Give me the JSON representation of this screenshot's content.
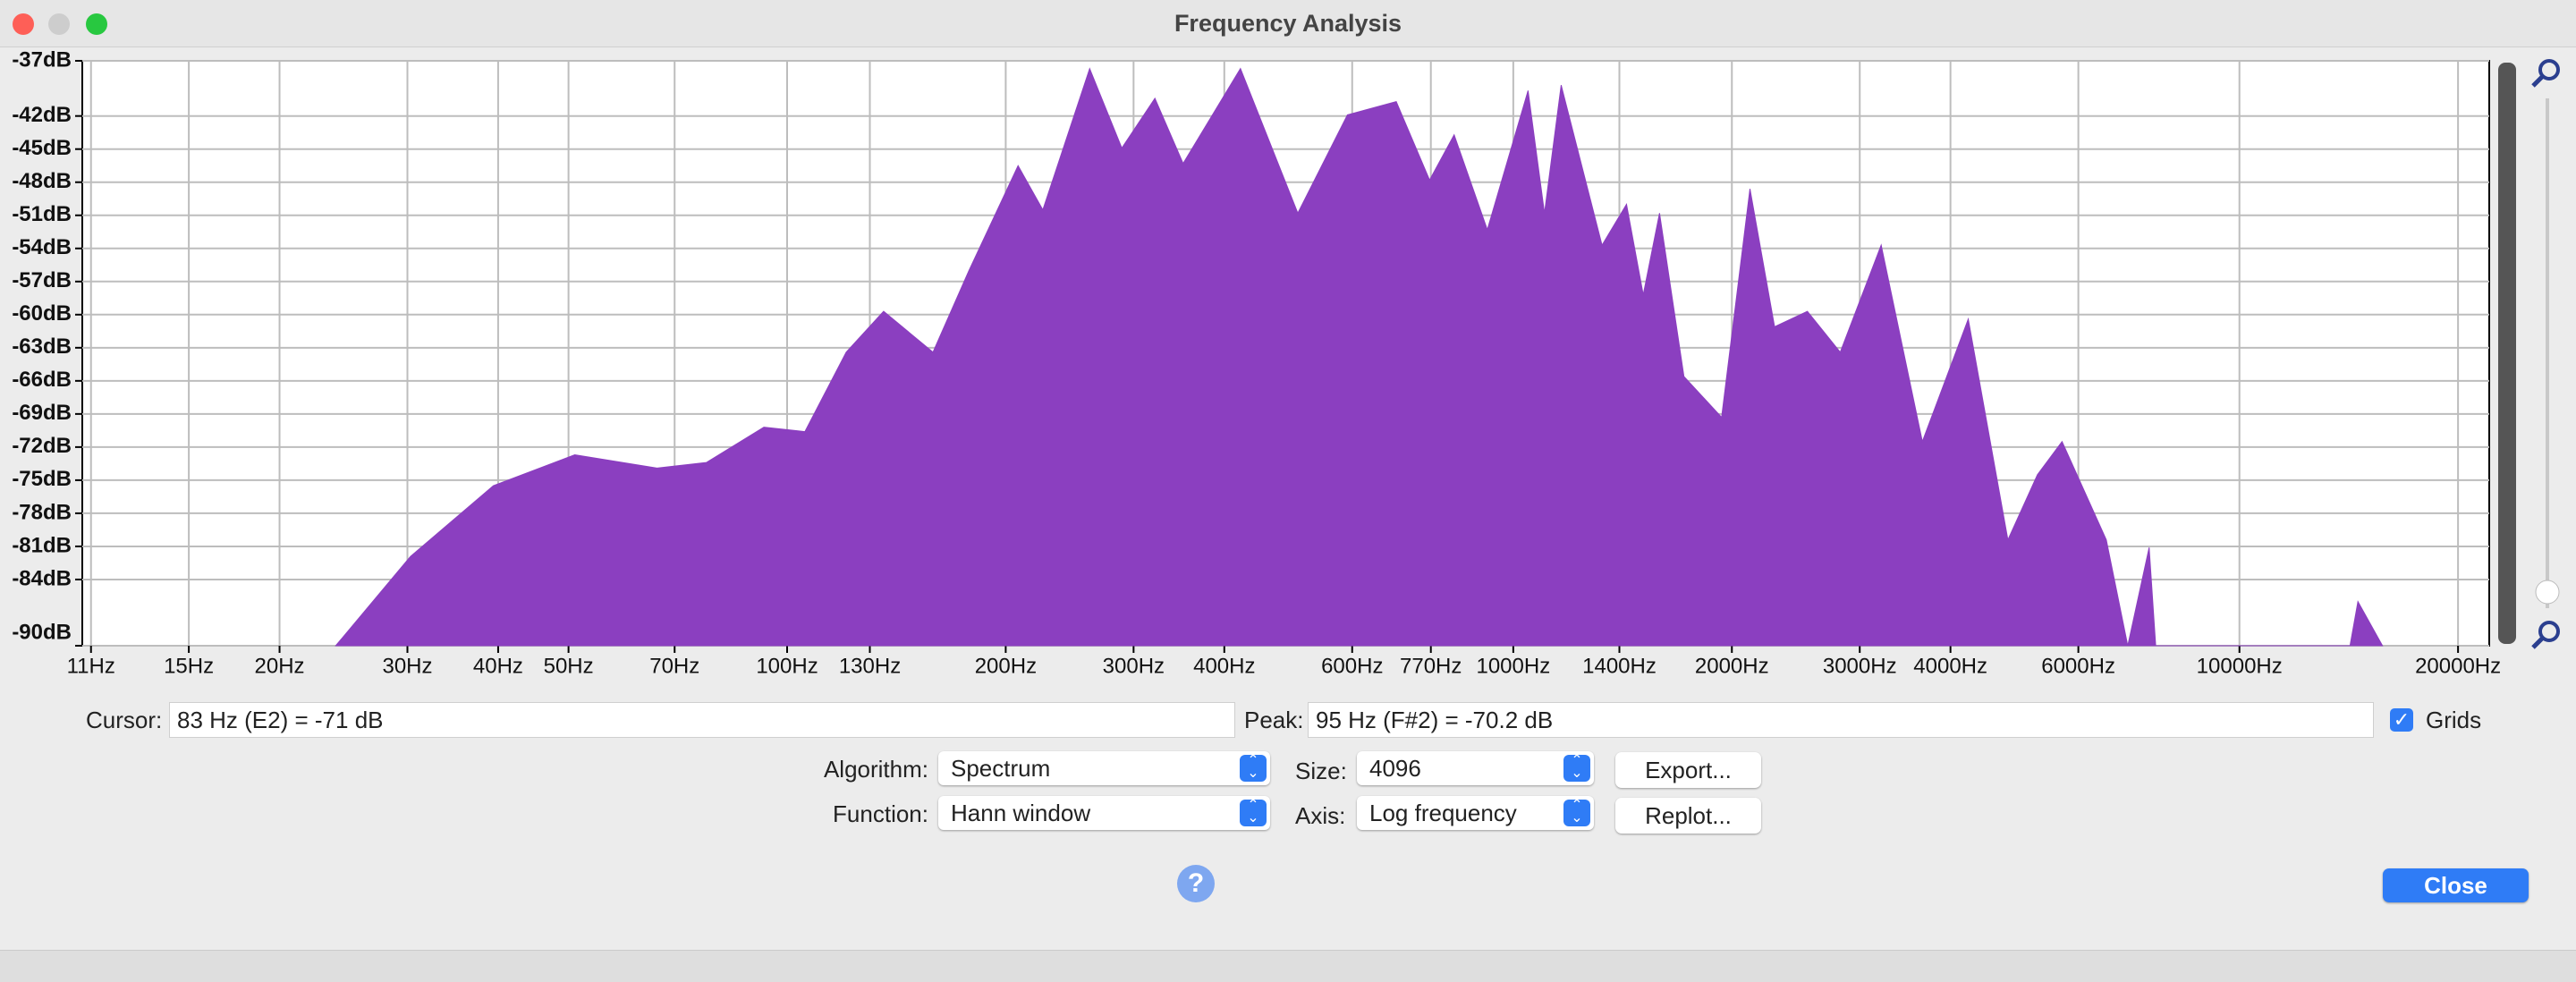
{
  "window_title": "Frequency Analysis",
  "chart_data": {
    "type": "area",
    "xscale": "log",
    "grid": true,
    "color": "#8b3fc0",
    "x": [
      23.9,
      30.3,
      39.4,
      51,
      66.2,
      77.4,
      92.9,
      105.8,
      120.6,
      135.8,
      158.8,
      178,
      208,
      225,
      261,
      289,
      321,
      351,
      421,
      505,
      591,
      690,
      767,
      829,
      921,
      1048,
      1104,
      1164,
      1325,
      1432,
      1510,
      1590,
      1718,
      1936,
      2118,
      2290,
      2541,
      2820,
      3211,
      3659,
      4232,
      4799,
      5270,
      5698,
      6556,
      7018,
      7510,
      7668,
      14200,
      14560,
      15740
    ],
    "values": [
      -90,
      -81.9,
      -75.5,
      -72.7,
      -73.9,
      -73.4,
      -70.2,
      -70.6,
      -63.4,
      -59.7,
      -63.4,
      -56,
      -46.5,
      -50.5,
      -37.7,
      -44.9,
      -40.4,
      -46.3,
      -37.7,
      -50.8,
      -41.9,
      -40.7,
      -47.8,
      -43.7,
      -52.3,
      -39.7,
      -50.8,
      -39.2,
      -53.7,
      -50,
      -58.2,
      -50.8,
      -65.6,
      -69.3,
      -48.6,
      -61.1,
      -59.7,
      -63.4,
      -53.7,
      -71.5,
      -60.4,
      -80.4,
      -74.5,
      -71.5,
      -80.4,
      -90,
      -81.1,
      -90,
      -90,
      -86,
      -90
    ],
    "xlim": [
      10.7,
      22080
    ],
    "ylim": [
      -90,
      -37
    ],
    "xticks": [
      {
        "value": 11,
        "label": "11Hz"
      },
      {
        "value": 15,
        "label": "15Hz"
      },
      {
        "value": 20,
        "label": "20Hz"
      },
      {
        "value": 30,
        "label": "30Hz"
      },
      {
        "value": 40,
        "label": "40Hz"
      },
      {
        "value": 50,
        "label": "50Hz"
      },
      {
        "value": 70,
        "label": "70Hz"
      },
      {
        "value": 100,
        "label": "100Hz"
      },
      {
        "value": 130,
        "label": "130Hz"
      },
      {
        "value": 200,
        "label": "200Hz"
      },
      {
        "value": 300,
        "label": "300Hz"
      },
      {
        "value": 400,
        "label": "400Hz"
      },
      {
        "value": 600,
        "label": "600Hz"
      },
      {
        "value": 770,
        "label": "770Hz"
      },
      {
        "value": 1000,
        "label": "1000Hz"
      },
      {
        "value": 1400,
        "label": "1400Hz"
      },
      {
        "value": 2000,
        "label": "2000Hz"
      },
      {
        "value": 3000,
        "label": "3000Hz"
      },
      {
        "value": 4000,
        "label": "4000Hz"
      },
      {
        "value": 6000,
        "label": "6000Hz"
      },
      {
        "value": 10000,
        "label": "10000Hz"
      },
      {
        "value": 20000,
        "label": "20000Hz"
      }
    ],
    "yticks": [
      {
        "value": -37,
        "label": "-37dB"
      },
      {
        "value": -42,
        "label": "-42dB"
      },
      {
        "value": -45,
        "label": "-45dB"
      },
      {
        "value": -48,
        "label": "-48dB"
      },
      {
        "value": -51,
        "label": "-51dB"
      },
      {
        "value": -54,
        "label": "-54dB"
      },
      {
        "value": -57,
        "label": "-57dB"
      },
      {
        "value": -60,
        "label": "-60dB"
      },
      {
        "value": -63,
        "label": "-63dB"
      },
      {
        "value": -66,
        "label": "-66dB"
      },
      {
        "value": -69,
        "label": "-69dB"
      },
      {
        "value": -72,
        "label": "-72dB"
      },
      {
        "value": -75,
        "label": "-75dB"
      },
      {
        "value": -78,
        "label": "-78dB"
      },
      {
        "value": -81,
        "label": "-81dB"
      },
      {
        "value": -84,
        "label": "-84dB"
      },
      {
        "value": -90,
        "label": "-90dB"
      }
    ]
  },
  "cursor": {
    "label": "Cursor:",
    "value": "83 Hz (E2) = -71 dB"
  },
  "peak": {
    "label": "Peak:",
    "value": "95 Hz (F#2) = -70.2 dB"
  },
  "grids_label": "Grids",
  "algorithm": {
    "label": "Algorithm:",
    "value": "Spectrum"
  },
  "size": {
    "label": "Size:",
    "value": "4096"
  },
  "function": {
    "label": "Function:",
    "value": "Hann window"
  },
  "axis": {
    "label": "Axis:",
    "value": "Log frequency"
  },
  "buttons": {
    "export": "Export...",
    "replot": "Replot...",
    "close": "Close"
  },
  "help": "?"
}
